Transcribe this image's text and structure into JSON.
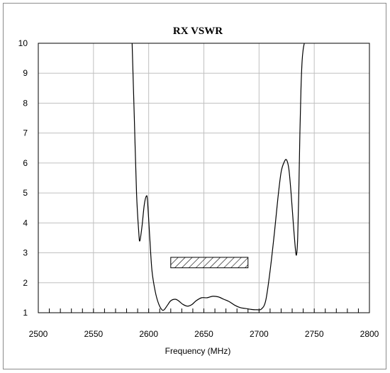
{
  "chart_data": {
    "type": "line",
    "title": "RX VSWR",
    "xlabel": "Frequency (MHz)",
    "ylabel": "",
    "xlim": [
      2500,
      2800
    ],
    "ylim": [
      1,
      10
    ],
    "x_ticks": [
      2500,
      2550,
      2600,
      2650,
      2700,
      2750,
      2800
    ],
    "y_ticks": [
      1,
      2,
      3,
      4,
      5,
      6,
      7,
      8,
      9,
      10
    ],
    "x_minor_step": 10,
    "grid": true,
    "legend": "none",
    "line_color": "#000000",
    "grid_color": "#c0c0c0",
    "series": [
      {
        "x": [
          2585,
          2587,
          2589,
          2591,
          2592,
          2594,
          2596,
          2598,
          2599,
          2601,
          2603,
          2606,
          2609,
          2612,
          2614,
          2617,
          2620,
          2624,
          2627,
          2631,
          2635,
          2639,
          2643,
          2648,
          2653,
          2658,
          2663,
          2668,
          2673,
          2678,
          2683,
          2688,
          2693,
          2698,
          2702,
          2706,
          2710,
          2714,
          2717,
          2720,
          2723,
          2725,
          2727,
          2729,
          2731,
          2733,
          2734,
          2735,
          2736,
          2737,
          2738,
          2739,
          2740,
          2741
        ],
        "y": [
          10.0,
          7.5,
          5.0,
          3.7,
          3.4,
          3.9,
          4.6,
          4.9,
          4.7,
          3.5,
          2.4,
          1.7,
          1.3,
          1.1,
          1.1,
          1.25,
          1.4,
          1.45,
          1.4,
          1.28,
          1.22,
          1.27,
          1.4,
          1.5,
          1.5,
          1.55,
          1.53,
          1.45,
          1.37,
          1.25,
          1.17,
          1.14,
          1.11,
          1.1,
          1.12,
          1.4,
          2.4,
          3.7,
          4.8,
          5.7,
          6.05,
          6.1,
          5.8,
          5.0,
          4.0,
          3.1,
          2.95,
          3.5,
          5.0,
          7.0,
          8.5,
          9.4,
          9.8,
          10.0
        ]
      }
    ],
    "spec_box": {
      "x_range": [
        2620,
        2690
      ],
      "y_range": [
        2.5,
        2.85
      ],
      "fill": "hatched"
    }
  }
}
